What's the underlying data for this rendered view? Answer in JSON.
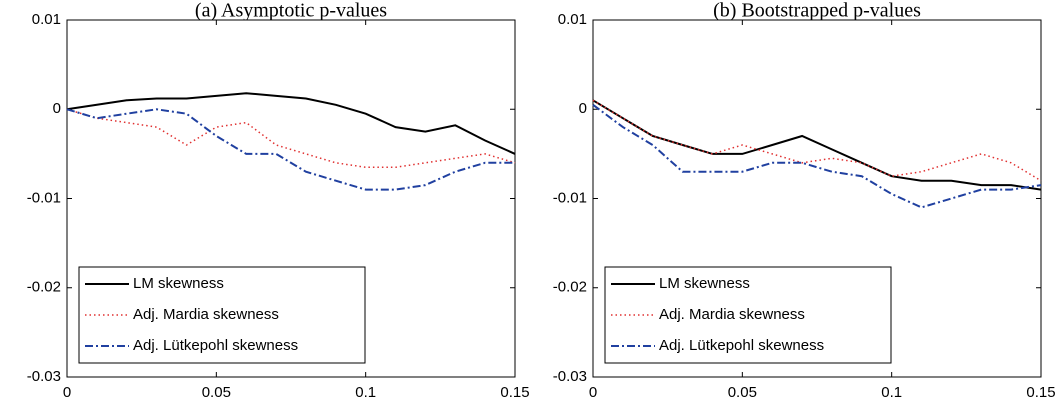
{
  "chart_data": [
    {
      "type": "line",
      "title": "(a) Asymptotic p-values",
      "x": [
        0,
        0.01,
        0.02,
        0.03,
        0.04,
        0.05,
        0.06,
        0.07,
        0.08,
        0.09,
        0.1,
        0.11,
        0.12,
        0.13,
        0.14,
        0.15
      ],
      "xlim": [
        0,
        0.15
      ],
      "xticks": [
        0,
        0.05,
        0.1,
        0.15
      ],
      "ylim": [
        -0.03,
        0.01
      ],
      "yticks": [
        -0.03,
        -0.02,
        -0.01,
        0,
        0.01
      ],
      "legend": "lower left",
      "series": [
        {
          "name": "LM skewness",
          "color": "#000000",
          "style": "solid",
          "values": [
            0,
            0.0005,
            0.001,
            0.0012,
            0.0012,
            0.0015,
            0.0018,
            0.0015,
            0.0012,
            0.0005,
            -0.0005,
            -0.002,
            -0.0025,
            -0.0018,
            -0.0035,
            -0.005
          ]
        },
        {
          "name": "Adj. Mardia skewness",
          "color": "#e03030",
          "style": "dotted",
          "values": [
            0,
            -0.001,
            -0.0015,
            -0.002,
            -0.004,
            -0.002,
            -0.0015,
            -0.004,
            -0.005,
            -0.006,
            -0.0065,
            -0.0065,
            -0.006,
            -0.0055,
            -0.005,
            -0.006
          ]
        },
        {
          "name": "Adj. Lütkepohl skewness",
          "color": "#2040a0",
          "style": "dashdot",
          "values": [
            0,
            -0.001,
            -0.0005,
            0,
            -0.0005,
            -0.003,
            -0.005,
            -0.005,
            -0.007,
            -0.008,
            -0.009,
            -0.009,
            -0.0085,
            -0.007,
            -0.006,
            -0.006
          ]
        }
      ]
    },
    {
      "type": "line",
      "title": "(b) Bootstrapped p-values",
      "x": [
        0,
        0.01,
        0.02,
        0.03,
        0.04,
        0.05,
        0.06,
        0.07,
        0.08,
        0.09,
        0.1,
        0.11,
        0.12,
        0.13,
        0.14,
        0.15
      ],
      "xlim": [
        0,
        0.15
      ],
      "xticks": [
        0,
        0.05,
        0.1,
        0.15
      ],
      "ylim": [
        -0.03,
        0.01
      ],
      "yticks": [
        -0.03,
        -0.02,
        -0.01,
        0,
        0.01
      ],
      "legend": "lower left",
      "series": [
        {
          "name": "LM skewness",
          "color": "#000000",
          "style": "solid",
          "values": [
            0.001,
            -0.001,
            -0.003,
            -0.004,
            -0.005,
            -0.005,
            -0.004,
            -0.003,
            -0.0045,
            -0.006,
            -0.0075,
            -0.008,
            -0.008,
            -0.0085,
            -0.0085,
            -0.009
          ]
        },
        {
          "name": "Adj. Mardia skewness",
          "color": "#e03030",
          "style": "dotted",
          "values": [
            0.001,
            -0.001,
            -0.003,
            -0.004,
            -0.005,
            -0.004,
            -0.005,
            -0.006,
            -0.0055,
            -0.006,
            -0.0075,
            -0.007,
            -0.006,
            -0.005,
            -0.006,
            -0.008
          ]
        },
        {
          "name": "Adj. Lütkepohl skewness",
          "color": "#2040a0",
          "style": "dashdot",
          "values": [
            0.0005,
            -0.002,
            -0.004,
            -0.007,
            -0.007,
            -0.007,
            -0.006,
            -0.006,
            -0.007,
            -0.0075,
            -0.0095,
            -0.011,
            -0.01,
            -0.009,
            -0.009,
            -0.0085
          ]
        }
      ]
    }
  ]
}
